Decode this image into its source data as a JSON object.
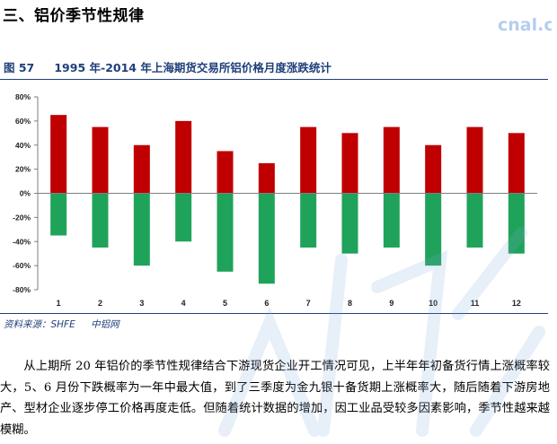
{
  "section": {
    "title": "三、铝价季节性规律"
  },
  "watermark": {
    "site": "cnal.com"
  },
  "figure": {
    "number": "图 57",
    "title": "1995 年-2014 年上海期货交易所铝价格月度涨跌统计"
  },
  "source": {
    "label": "资料来源：SHFE",
    "org": "中铝网"
  },
  "body": {
    "paragraph": "从上期所 20 年铝价的季节性规律结合下游现货企业开工情况可见，上半年年初备货行情上涨概率较大，5、6 月份下跌概率为一年中最大值，到了三季度为金九银十备货期上涨概率大，随后随着下游房地产、型材企业逐步停工价格再度走低。但随着统计数据的增加，因工业品受较多因素影响，季节性越来越模糊。"
  },
  "chart_data": {
    "type": "bar",
    "categories": [
      "1",
      "2",
      "3",
      "4",
      "5",
      "6",
      "7",
      "8",
      "9",
      "10",
      "11",
      "12"
    ],
    "series": [
      {
        "values": [
          65,
          55,
          40,
          60,
          35,
          25,
          55,
          50,
          55,
          40,
          55,
          50
        ],
        "color": "#c00000"
      },
      {
        "values": [
          -35,
          -45,
          -60,
          -40,
          -65,
          -75,
          -45,
          -50,
          -45,
          -60,
          -45,
          -50
        ],
        "color": "#1fa35a"
      }
    ],
    "yticks": [
      "80%",
      "60%",
      "40%",
      "20%",
      "0%",
      "-20%",
      "-40%",
      "-60%",
      "-80%"
    ],
    "ylim": [
      -80,
      80
    ],
    "grid": false,
    "legend": "none"
  }
}
